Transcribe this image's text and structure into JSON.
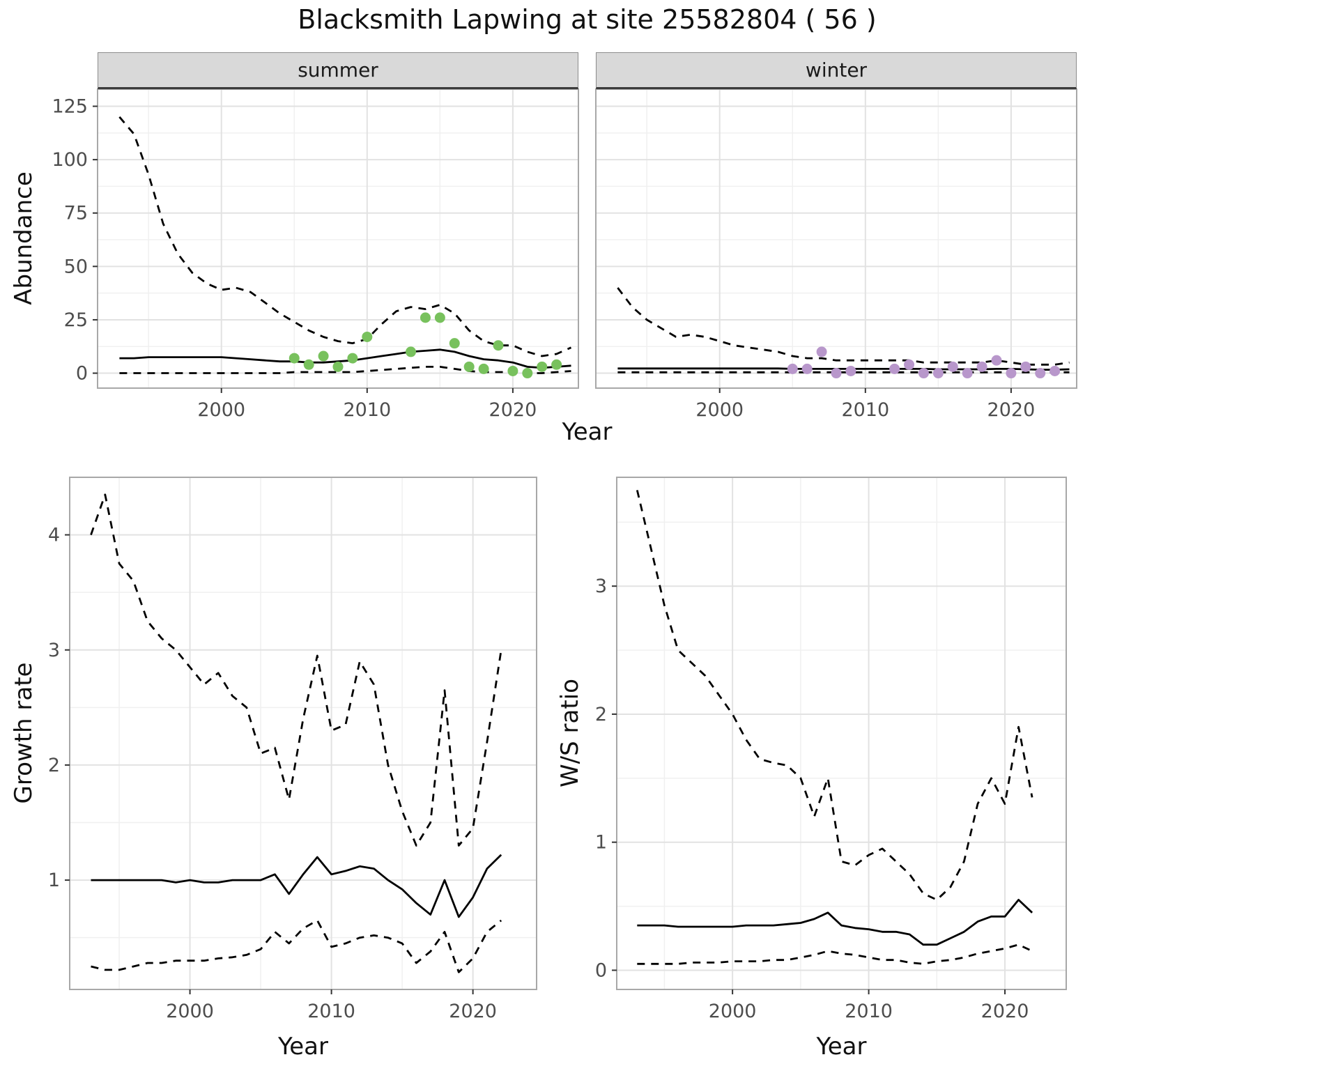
{
  "chart": {
    "title": "Blacksmith Lapwing at site 25582804 ( 56 )",
    "colors": {
      "summer_points": "#78c15d",
      "winter_points": "#b897cb",
      "line": "#000000",
      "grid_major": "#e2e2e2",
      "grid_minor": "#f0f0f0",
      "panel_border": "#a8a8a8",
      "strip_background": "#d9d9d9",
      "tick_mark": "#333333",
      "axis_text": "#4d4d4d"
    }
  },
  "chart_data": [
    {
      "type": "line",
      "facet": "summer",
      "xlabel": "Year",
      "ylabel": "Abundance",
      "xlim": [
        1991.5,
        2024.5
      ],
      "ylim": [
        -7,
        133
      ],
      "xticks": [
        2000,
        2010,
        2020
      ],
      "yticks": [
        0,
        25,
        50,
        75,
        100,
        125
      ],
      "grid": true,
      "legend": "none",
      "series": [
        {
          "name": "upper_ci",
          "style": "dashed",
          "x": [
            1993,
            1994,
            1995,
            1996,
            1997,
            1998,
            1999,
            2000,
            2001,
            2002,
            2003,
            2004,
            2005,
            2006,
            2007,
            2008,
            2009,
            2010,
            2011,
            2012,
            2013,
            2014,
            2015,
            2016,
            2017,
            2018,
            2019,
            2020,
            2021,
            2022,
            2023,
            2024
          ],
          "values": [
            120,
            112,
            93,
            70,
            56,
            47,
            42,
            39,
            40,
            38,
            33,
            28,
            24,
            20,
            17,
            15,
            14,
            16,
            23,
            29,
            31,
            30,
            32,
            28,
            20,
            15,
            13,
            13,
            10,
            8,
            9,
            12
          ]
        },
        {
          "name": "median",
          "style": "solid",
          "x": [
            1993,
            1994,
            1995,
            1996,
            1997,
            1998,
            1999,
            2000,
            2001,
            2002,
            2003,
            2004,
            2005,
            2006,
            2007,
            2008,
            2009,
            2010,
            2011,
            2012,
            2013,
            2014,
            2015,
            2016,
            2017,
            2018,
            2019,
            2020,
            2021,
            2022,
            2023,
            2024
          ],
          "values": [
            7,
            7,
            7.5,
            7.5,
            7.5,
            7.5,
            7.5,
            7.5,
            7,
            6.5,
            6,
            5.5,
            5.5,
            5,
            5,
            5.5,
            6,
            7,
            8,
            9,
            10,
            10.5,
            11,
            10,
            8,
            6.5,
            6,
            5,
            3,
            2.5,
            3,
            3.5
          ]
        },
        {
          "name": "lower_ci",
          "style": "dashed",
          "x": [
            1993,
            1994,
            1995,
            1996,
            1997,
            1998,
            1999,
            2000,
            2001,
            2002,
            2003,
            2004,
            2005,
            2006,
            2007,
            2008,
            2009,
            2010,
            2011,
            2012,
            2013,
            2014,
            2015,
            2016,
            2017,
            2018,
            2019,
            2020,
            2021,
            2022,
            2023,
            2024
          ],
          "values": [
            0,
            0,
            0,
            0,
            0,
            0,
            0,
            0,
            0,
            0,
            0,
            0,
            0.5,
            0.5,
            0.5,
            0.5,
            0.5,
            1,
            1.5,
            2,
            2.5,
            3,
            3,
            2,
            1,
            0.5,
            0.5,
            0.5,
            0,
            0,
            0.5,
            1
          ]
        },
        {
          "name": "observed_counts",
          "style": "points",
          "color": "#78c15d",
          "x": [
            2005,
            2006,
            2007,
            2008,
            2009,
            2010,
            2013,
            2014,
            2015,
            2016,
            2017,
            2018,
            2019,
            2020,
            2021,
            2022,
            2023
          ],
          "values": [
            7,
            4,
            8,
            3,
            7,
            17,
            10,
            26,
            26,
            14,
            3,
            2,
            13,
            1,
            0,
            3,
            4
          ]
        }
      ]
    },
    {
      "type": "line",
      "facet": "winter",
      "xlabel": "Year",
      "ylabel": "Abundance",
      "xlim": [
        1991.5,
        2024.5
      ],
      "ylim": [
        -7,
        133
      ],
      "xticks": [
        2000,
        2010,
        2020
      ],
      "yticks": [
        0,
        25,
        50,
        75,
        100,
        125
      ],
      "grid": true,
      "legend": "none",
      "series": [
        {
          "name": "upper_ci",
          "style": "dashed",
          "x": [
            1993,
            1994,
            1995,
            1996,
            1997,
            1998,
            1999,
            2000,
            2001,
            2002,
            2003,
            2004,
            2005,
            2006,
            2007,
            2008,
            2009,
            2010,
            2011,
            2012,
            2013,
            2014,
            2015,
            2016,
            2017,
            2018,
            2019,
            2020,
            2021,
            2022,
            2023,
            2024
          ],
          "values": [
            40,
            31,
            25,
            21,
            17,
            18,
            17,
            15,
            13,
            12,
            11,
            10,
            8,
            7,
            7,
            6,
            6,
            6,
            6,
            6,
            6,
            5,
            5,
            5,
            5,
            5,
            6,
            5,
            4,
            4,
            4,
            5
          ]
        },
        {
          "name": "median",
          "style": "solid",
          "x": [
            1993,
            1994,
            1995,
            1996,
            1997,
            1998,
            1999,
            2000,
            2001,
            2002,
            2003,
            2004,
            2005,
            2006,
            2007,
            2008,
            2009,
            2010,
            2011,
            2012,
            2013,
            2014,
            2015,
            2016,
            2017,
            2018,
            2019,
            2020,
            2021,
            2022,
            2023,
            2024
          ],
          "values": [
            2.2,
            2.2,
            2.2,
            2.2,
            2.2,
            2.2,
            2.2,
            2.2,
            2.2,
            2.2,
            2.2,
            2.2,
            2,
            2,
            2,
            2,
            2,
            2,
            2,
            2,
            2,
            2,
            1.8,
            1.8,
            1.8,
            1.8,
            2,
            2,
            1.8,
            1.6,
            1.6,
            1.8
          ]
        },
        {
          "name": "lower_ci",
          "style": "dashed",
          "x": [
            1993,
            1994,
            1995,
            1996,
            1997,
            1998,
            1999,
            2000,
            2001,
            2002,
            2003,
            2004,
            2005,
            2006,
            2007,
            2008,
            2009,
            2010,
            2011,
            2012,
            2013,
            2014,
            2015,
            2016,
            2017,
            2018,
            2019,
            2020,
            2021,
            2022,
            2023,
            2024
          ],
          "values": [
            0.4,
            0.4,
            0.4,
            0.4,
            0.4,
            0.4,
            0.4,
            0.4,
            0.4,
            0.4,
            0.4,
            0.4,
            0.4,
            0.4,
            0.4,
            0.4,
            0.4,
            0.4,
            0.4,
            0.4,
            0.4,
            0.4,
            0.4,
            0.4,
            0.4,
            0.4,
            0.4,
            0.4,
            0.4,
            0.4,
            0.4,
            0.4
          ]
        },
        {
          "name": "observed_counts",
          "style": "points",
          "color": "#b897cb",
          "x": [
            2005,
            2006,
            2007,
            2008,
            2009,
            2012,
            2013,
            2014,
            2015,
            2016,
            2017,
            2018,
            2019,
            2020,
            2021,
            2022,
            2023
          ],
          "values": [
            2,
            2,
            10,
            0,
            1,
            2,
            4,
            0,
            0,
            3,
            0,
            3,
            6,
            0,
            3,
            0,
            1
          ]
        }
      ]
    },
    {
      "type": "line",
      "facet": "",
      "xlabel": "Year",
      "ylabel": "Growth rate",
      "xlim": [
        1991.5,
        2024.5
      ],
      "ylim": [
        0.05,
        4.5
      ],
      "xticks": [
        2000,
        2010,
        2020
      ],
      "yticks": [
        1,
        2,
        3,
        4
      ],
      "grid": true,
      "legend": "none",
      "series": [
        {
          "name": "upper_ci",
          "style": "dashed",
          "x": [
            1993,
            1994,
            1995,
            1996,
            1997,
            1998,
            1999,
            2000,
            2001,
            2002,
            2003,
            2004,
            2005,
            2006,
            2007,
            2008,
            2009,
            2010,
            2011,
            2012,
            2013,
            2014,
            2015,
            2016,
            2017,
            2018,
            2019,
            2020,
            2021,
            2022
          ],
          "values": [
            4.0,
            4.35,
            3.75,
            3.6,
            3.25,
            3.1,
            3.0,
            2.85,
            2.7,
            2.8,
            2.6,
            2.5,
            2.1,
            2.15,
            1.7,
            2.4,
            2.95,
            2.3,
            2.35,
            2.9,
            2.7,
            2.0,
            1.6,
            1.3,
            1.5,
            2.65,
            1.3,
            1.45,
            2.2,
            3.0
          ]
        },
        {
          "name": "median",
          "style": "solid",
          "x": [
            1993,
            1994,
            1995,
            1996,
            1997,
            1998,
            1999,
            2000,
            2001,
            2002,
            2003,
            2004,
            2005,
            2006,
            2007,
            2008,
            2009,
            2010,
            2011,
            2012,
            2013,
            2014,
            2015,
            2016,
            2017,
            2018,
            2019,
            2020,
            2021,
            2022
          ],
          "values": [
            1.0,
            1.0,
            1.0,
            1.0,
            1.0,
            1.0,
            0.98,
            1.0,
            0.98,
            0.98,
            1.0,
            1.0,
            1.0,
            1.05,
            0.88,
            1.05,
            1.2,
            1.05,
            1.08,
            1.12,
            1.1,
            1.0,
            0.92,
            0.8,
            0.7,
            1.0,
            0.68,
            0.85,
            1.1,
            1.22
          ]
        },
        {
          "name": "lower_ci",
          "style": "dashed",
          "x": [
            1993,
            1994,
            1995,
            1996,
            1997,
            1998,
            1999,
            2000,
            2001,
            2002,
            2003,
            2004,
            2005,
            2006,
            2007,
            2008,
            2009,
            2010,
            2011,
            2012,
            2013,
            2014,
            2015,
            2016,
            2017,
            2018,
            2019,
            2020,
            2021,
            2022
          ],
          "values": [
            0.25,
            0.22,
            0.22,
            0.25,
            0.28,
            0.28,
            0.3,
            0.3,
            0.3,
            0.32,
            0.33,
            0.35,
            0.4,
            0.55,
            0.45,
            0.58,
            0.65,
            0.42,
            0.45,
            0.5,
            0.52,
            0.5,
            0.45,
            0.28,
            0.38,
            0.55,
            0.2,
            0.32,
            0.55,
            0.65
          ]
        }
      ]
    },
    {
      "type": "line",
      "facet": "",
      "xlabel": "Year",
      "ylabel": "W/S ratio",
      "xlim": [
        1991.5,
        2024.5
      ],
      "ylim": [
        -0.15,
        3.85
      ],
      "xticks": [
        2000,
        2010,
        2020
      ],
      "yticks": [
        0,
        1,
        2,
        3
      ],
      "grid": true,
      "legend": "none",
      "series": [
        {
          "name": "upper_ci",
          "style": "dashed",
          "x": [
            1993,
            1994,
            1995,
            1996,
            1997,
            1998,
            1999,
            2000,
            2001,
            2002,
            2003,
            2004,
            2005,
            2006,
            2007,
            2008,
            2009,
            2010,
            2011,
            2012,
            2013,
            2014,
            2015,
            2016,
            2017,
            2018,
            2019,
            2020,
            2021,
            2022
          ],
          "values": [
            3.75,
            3.3,
            2.85,
            2.5,
            2.4,
            2.3,
            2.15,
            2.0,
            1.8,
            1.65,
            1.62,
            1.6,
            1.5,
            1.2,
            1.5,
            0.85,
            0.82,
            0.9,
            0.95,
            0.85,
            0.75,
            0.6,
            0.55,
            0.65,
            0.85,
            1.3,
            1.5,
            1.3,
            1.9,
            1.35
          ]
        },
        {
          "name": "median",
          "style": "solid",
          "x": [
            1993,
            1994,
            1995,
            1996,
            1997,
            1998,
            1999,
            2000,
            2001,
            2002,
            2003,
            2004,
            2005,
            2006,
            2007,
            2008,
            2009,
            2010,
            2011,
            2012,
            2013,
            2014,
            2015,
            2016,
            2017,
            2018,
            2019,
            2020,
            2021,
            2022
          ],
          "values": [
            0.35,
            0.35,
            0.35,
            0.34,
            0.34,
            0.34,
            0.34,
            0.34,
            0.35,
            0.35,
            0.35,
            0.36,
            0.37,
            0.4,
            0.45,
            0.35,
            0.33,
            0.32,
            0.3,
            0.3,
            0.28,
            0.2,
            0.2,
            0.25,
            0.3,
            0.38,
            0.42,
            0.42,
            0.55,
            0.45
          ]
        },
        {
          "name": "lower_ci",
          "style": "dashed",
          "x": [
            1993,
            1994,
            1995,
            1996,
            1997,
            1998,
            1999,
            2000,
            2001,
            2002,
            2003,
            2004,
            2005,
            2006,
            2007,
            2008,
            2009,
            2010,
            2011,
            2012,
            2013,
            2014,
            2015,
            2016,
            2017,
            2018,
            2019,
            2020,
            2021,
            2022
          ],
          "values": [
            0.05,
            0.05,
            0.05,
            0.05,
            0.06,
            0.06,
            0.06,
            0.07,
            0.07,
            0.07,
            0.08,
            0.08,
            0.1,
            0.12,
            0.15,
            0.13,
            0.12,
            0.1,
            0.08,
            0.08,
            0.06,
            0.05,
            0.07,
            0.08,
            0.1,
            0.13,
            0.15,
            0.17,
            0.2,
            0.15
          ]
        }
      ]
    }
  ]
}
